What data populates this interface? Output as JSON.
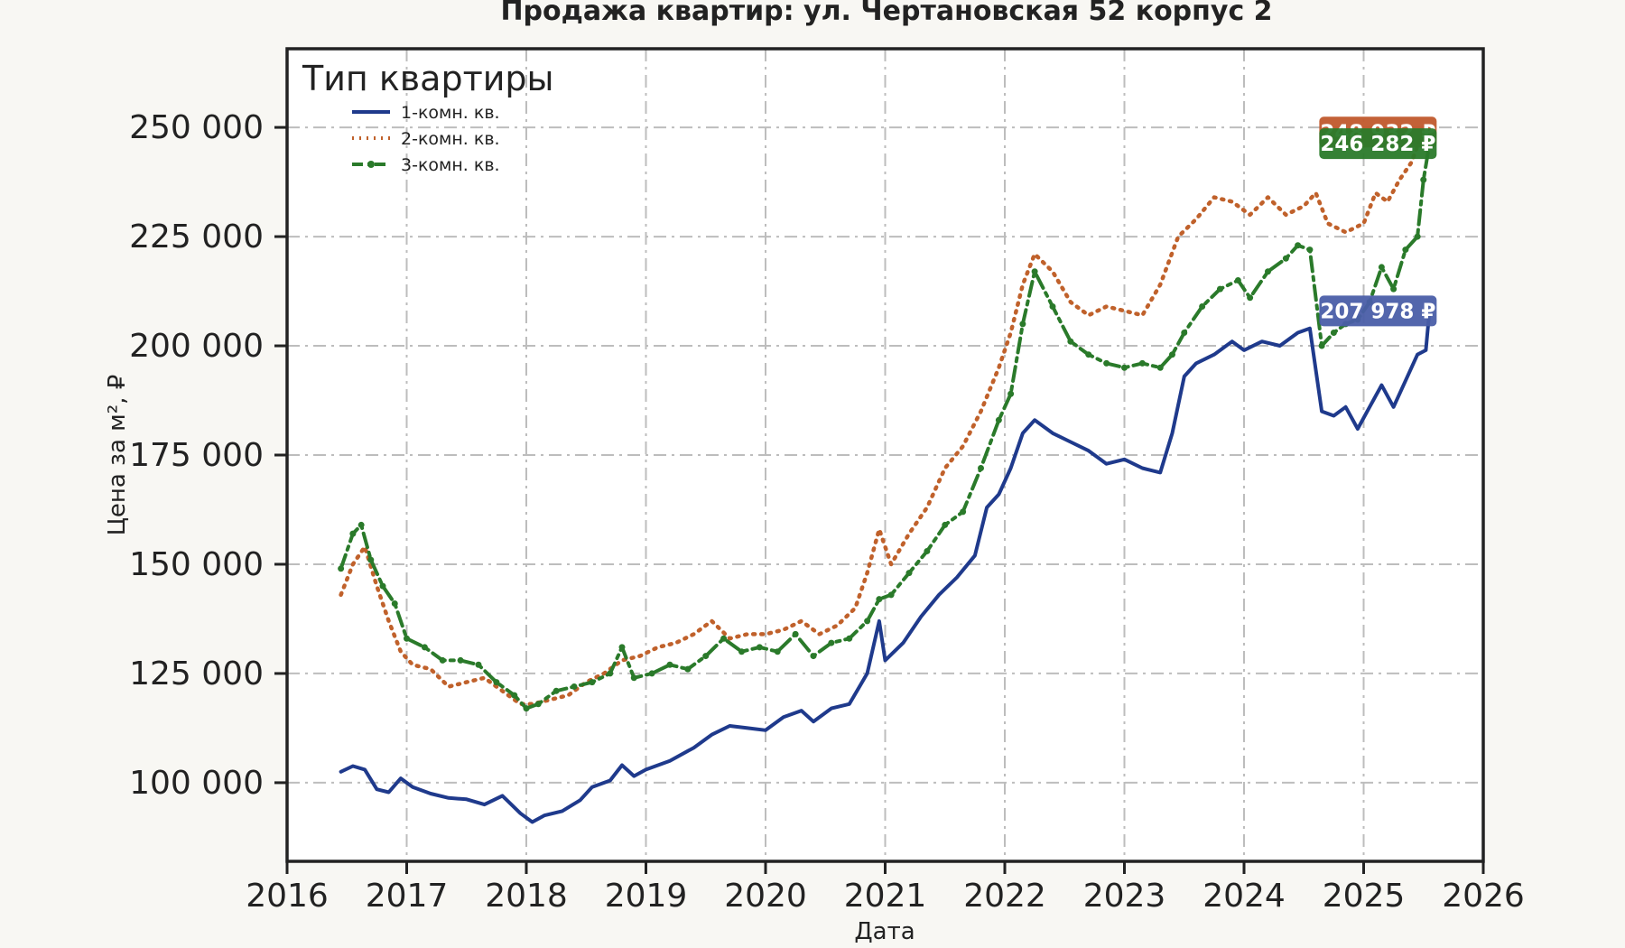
{
  "chart_data": {
    "type": "line",
    "title": "Продажа квартир: ул. Чертановская 52 корпус 2",
    "xlabel": "Дата",
    "ylabel": "Цена за м², ₽",
    "xlim": [
      2016.0,
      2026.0
    ],
    "ylim": [
      82000,
      268000
    ],
    "x_ticks": [
      2016,
      2017,
      2018,
      2019,
      2020,
      2021,
      2022,
      2023,
      2024,
      2025,
      2026
    ],
    "y_ticks": [
      100000,
      125000,
      150000,
      175000,
      200000,
      225000,
      250000
    ],
    "y_tick_labels": [
      "100 000",
      "125 000",
      "150 000",
      "175 000",
      "200 000",
      "225 000",
      "250 000"
    ],
    "grid": true,
    "legend": {
      "title": "Тип квартиры",
      "placement": "top-left"
    },
    "series": [
      {
        "name": "1-комн. кв.",
        "color": "#1f3a8c",
        "style": "solid",
        "end_label": "207 978 ₽",
        "label_color": "#4a5ea8",
        "points": [
          [
            2016.45,
            102500
          ],
          [
            2016.55,
            103800
          ],
          [
            2016.65,
            103000
          ],
          [
            2016.75,
            98500
          ],
          [
            2016.85,
            97800
          ],
          [
            2016.95,
            101000
          ],
          [
            2017.05,
            99000
          ],
          [
            2017.2,
            97500
          ],
          [
            2017.35,
            96500
          ],
          [
            2017.5,
            96200
          ],
          [
            2017.65,
            95000
          ],
          [
            2017.8,
            97000
          ],
          [
            2017.95,
            93000
          ],
          [
            2018.05,
            91000
          ],
          [
            2018.15,
            92500
          ],
          [
            2018.3,
            93500
          ],
          [
            2018.45,
            96000
          ],
          [
            2018.55,
            99000
          ],
          [
            2018.7,
            100500
          ],
          [
            2018.8,
            104000
          ],
          [
            2018.9,
            101500
          ],
          [
            2019.0,
            103000
          ],
          [
            2019.2,
            105000
          ],
          [
            2019.4,
            108000
          ],
          [
            2019.55,
            111000
          ],
          [
            2019.7,
            113000
          ],
          [
            2019.85,
            112500
          ],
          [
            2020.0,
            112000
          ],
          [
            2020.15,
            115000
          ],
          [
            2020.3,
            116500
          ],
          [
            2020.4,
            114000
          ],
          [
            2020.55,
            117000
          ],
          [
            2020.7,
            118000
          ],
          [
            2020.85,
            125000
          ],
          [
            2020.95,
            137000
          ],
          [
            2021.0,
            128000
          ],
          [
            2021.15,
            132000
          ],
          [
            2021.3,
            138000
          ],
          [
            2021.45,
            143000
          ],
          [
            2021.6,
            147000
          ],
          [
            2021.75,
            152000
          ],
          [
            2021.85,
            163000
          ],
          [
            2021.95,
            166000
          ],
          [
            2022.05,
            172000
          ],
          [
            2022.15,
            180000
          ],
          [
            2022.25,
            183000
          ],
          [
            2022.4,
            180000
          ],
          [
            2022.55,
            178000
          ],
          [
            2022.7,
            176000
          ],
          [
            2022.85,
            173000
          ],
          [
            2023.0,
            174000
          ],
          [
            2023.15,
            172000
          ],
          [
            2023.3,
            171000
          ],
          [
            2023.4,
            180000
          ],
          [
            2023.5,
            193000
          ],
          [
            2023.6,
            196000
          ],
          [
            2023.75,
            198000
          ],
          [
            2023.9,
            201000
          ],
          [
            2024.0,
            199000
          ],
          [
            2024.15,
            201000
          ],
          [
            2024.3,
            200000
          ],
          [
            2024.45,
            203000
          ],
          [
            2024.55,
            204000
          ],
          [
            2024.65,
            185000
          ],
          [
            2024.75,
            184000
          ],
          [
            2024.85,
            186000
          ],
          [
            2024.95,
            181000
          ],
          [
            2025.05,
            186000
          ],
          [
            2025.15,
            191000
          ],
          [
            2025.25,
            186000
          ],
          [
            2025.35,
            192000
          ],
          [
            2025.45,
            198000
          ],
          [
            2025.52,
            199000
          ],
          [
            2025.55,
            207978
          ]
        ]
      },
      {
        "name": "2-комн. кв.",
        "color": "#c0612b",
        "style": "dotted",
        "end_label": "248 932 ₽",
        "label_color": "#c0582c",
        "points": [
          [
            2016.45,
            143000
          ],
          [
            2016.55,
            150000
          ],
          [
            2016.65,
            154000
          ],
          [
            2016.75,
            145000
          ],
          [
            2016.85,
            137000
          ],
          [
            2016.95,
            130000
          ],
          [
            2017.05,
            127000
          ],
          [
            2017.2,
            126000
          ],
          [
            2017.35,
            122000
          ],
          [
            2017.5,
            123000
          ],
          [
            2017.65,
            124000
          ],
          [
            2017.8,
            121000
          ],
          [
            2017.95,
            118000
          ],
          [
            2018.05,
            118000
          ],
          [
            2018.2,
            119000
          ],
          [
            2018.35,
            120000
          ],
          [
            2018.5,
            123000
          ],
          [
            2018.65,
            125000
          ],
          [
            2018.8,
            128000
          ],
          [
            2018.95,
            129000
          ],
          [
            2019.1,
            131000
          ],
          [
            2019.25,
            132000
          ],
          [
            2019.4,
            134000
          ],
          [
            2019.55,
            137000
          ],
          [
            2019.7,
            133000
          ],
          [
            2019.85,
            134000
          ],
          [
            2020.0,
            134000
          ],
          [
            2020.15,
            135000
          ],
          [
            2020.3,
            137000
          ],
          [
            2020.45,
            134000
          ],
          [
            2020.6,
            136000
          ],
          [
            2020.75,
            140000
          ],
          [
            2020.85,
            148000
          ],
          [
            2020.95,
            158000
          ],
          [
            2021.05,
            150000
          ],
          [
            2021.2,
            157000
          ],
          [
            2021.35,
            163000
          ],
          [
            2021.5,
            172000
          ],
          [
            2021.65,
            177000
          ],
          [
            2021.8,
            185000
          ],
          [
            2021.95,
            195000
          ],
          [
            2022.05,
            203000
          ],
          [
            2022.15,
            214000
          ],
          [
            2022.25,
            221000
          ],
          [
            2022.4,
            217000
          ],
          [
            2022.55,
            210000
          ],
          [
            2022.7,
            207000
          ],
          [
            2022.85,
            209000
          ],
          [
            2023.0,
            208000
          ],
          [
            2023.15,
            207000
          ],
          [
            2023.3,
            214000
          ],
          [
            2023.45,
            225000
          ],
          [
            2023.6,
            229000
          ],
          [
            2023.75,
            234000
          ],
          [
            2023.9,
            233000
          ],
          [
            2024.05,
            230000
          ],
          [
            2024.2,
            234000
          ],
          [
            2024.35,
            230000
          ],
          [
            2024.5,
            232000
          ],
          [
            2024.6,
            235000
          ],
          [
            2024.7,
            228000
          ],
          [
            2024.85,
            226000
          ],
          [
            2025.0,
            228000
          ],
          [
            2025.1,
            235000
          ],
          [
            2025.2,
            233000
          ],
          [
            2025.3,
            238000
          ],
          [
            2025.4,
            242000
          ],
          [
            2025.48,
            248000
          ],
          [
            2025.55,
            248932
          ]
        ]
      },
      {
        "name": "3-комн. кв.",
        "color": "#2a7a2a",
        "style": "dashdot-marker",
        "end_label": "246 282 ₽",
        "label_color": "#2a7a2a",
        "points": [
          [
            2016.45,
            149000
          ],
          [
            2016.55,
            157000
          ],
          [
            2016.62,
            159000
          ],
          [
            2016.7,
            151000
          ],
          [
            2016.8,
            145000
          ],
          [
            2016.9,
            141000
          ],
          [
            2017.0,
            133000
          ],
          [
            2017.15,
            131000
          ],
          [
            2017.3,
            128000
          ],
          [
            2017.45,
            128000
          ],
          [
            2017.6,
            127000
          ],
          [
            2017.75,
            123000
          ],
          [
            2017.9,
            120000
          ],
          [
            2018.0,
            117000
          ],
          [
            2018.1,
            118000
          ],
          [
            2018.25,
            121000
          ],
          [
            2018.4,
            122000
          ],
          [
            2018.55,
            123000
          ],
          [
            2018.7,
            125000
          ],
          [
            2018.8,
            131000
          ],
          [
            2018.9,
            124000
          ],
          [
            2019.05,
            125000
          ],
          [
            2019.2,
            127000
          ],
          [
            2019.35,
            126000
          ],
          [
            2019.5,
            129000
          ],
          [
            2019.65,
            133000
          ],
          [
            2019.8,
            130000
          ],
          [
            2019.95,
            131000
          ],
          [
            2020.1,
            130000
          ],
          [
            2020.25,
            134000
          ],
          [
            2020.4,
            129000
          ],
          [
            2020.55,
            132000
          ],
          [
            2020.7,
            133000
          ],
          [
            2020.85,
            137000
          ],
          [
            2020.95,
            142000
          ],
          [
            2021.05,
            143000
          ],
          [
            2021.2,
            148000
          ],
          [
            2021.35,
            153000
          ],
          [
            2021.5,
            159000
          ],
          [
            2021.65,
            162000
          ],
          [
            2021.8,
            172000
          ],
          [
            2021.95,
            183000
          ],
          [
            2022.05,
            189000
          ],
          [
            2022.15,
            205000
          ],
          [
            2022.25,
            217000
          ],
          [
            2022.4,
            209000
          ],
          [
            2022.55,
            201000
          ],
          [
            2022.7,
            198000
          ],
          [
            2022.85,
            196000
          ],
          [
            2023.0,
            195000
          ],
          [
            2023.15,
            196000
          ],
          [
            2023.3,
            195000
          ],
          [
            2023.4,
            198000
          ],
          [
            2023.5,
            203000
          ],
          [
            2023.65,
            209000
          ],
          [
            2023.8,
            213000
          ],
          [
            2023.95,
            215000
          ],
          [
            2024.05,
            211000
          ],
          [
            2024.2,
            217000
          ],
          [
            2024.35,
            220000
          ],
          [
            2024.45,
            223000
          ],
          [
            2024.55,
            222000
          ],
          [
            2024.65,
            200000
          ],
          [
            2024.75,
            203000
          ],
          [
            2024.85,
            205000
          ],
          [
            2024.95,
            206000
          ],
          [
            2025.05,
            210000
          ],
          [
            2025.15,
            218000
          ],
          [
            2025.25,
            213000
          ],
          [
            2025.35,
            222000
          ],
          [
            2025.45,
            225000
          ],
          [
            2025.5,
            238000
          ],
          [
            2025.55,
            246282
          ]
        ]
      }
    ]
  }
}
